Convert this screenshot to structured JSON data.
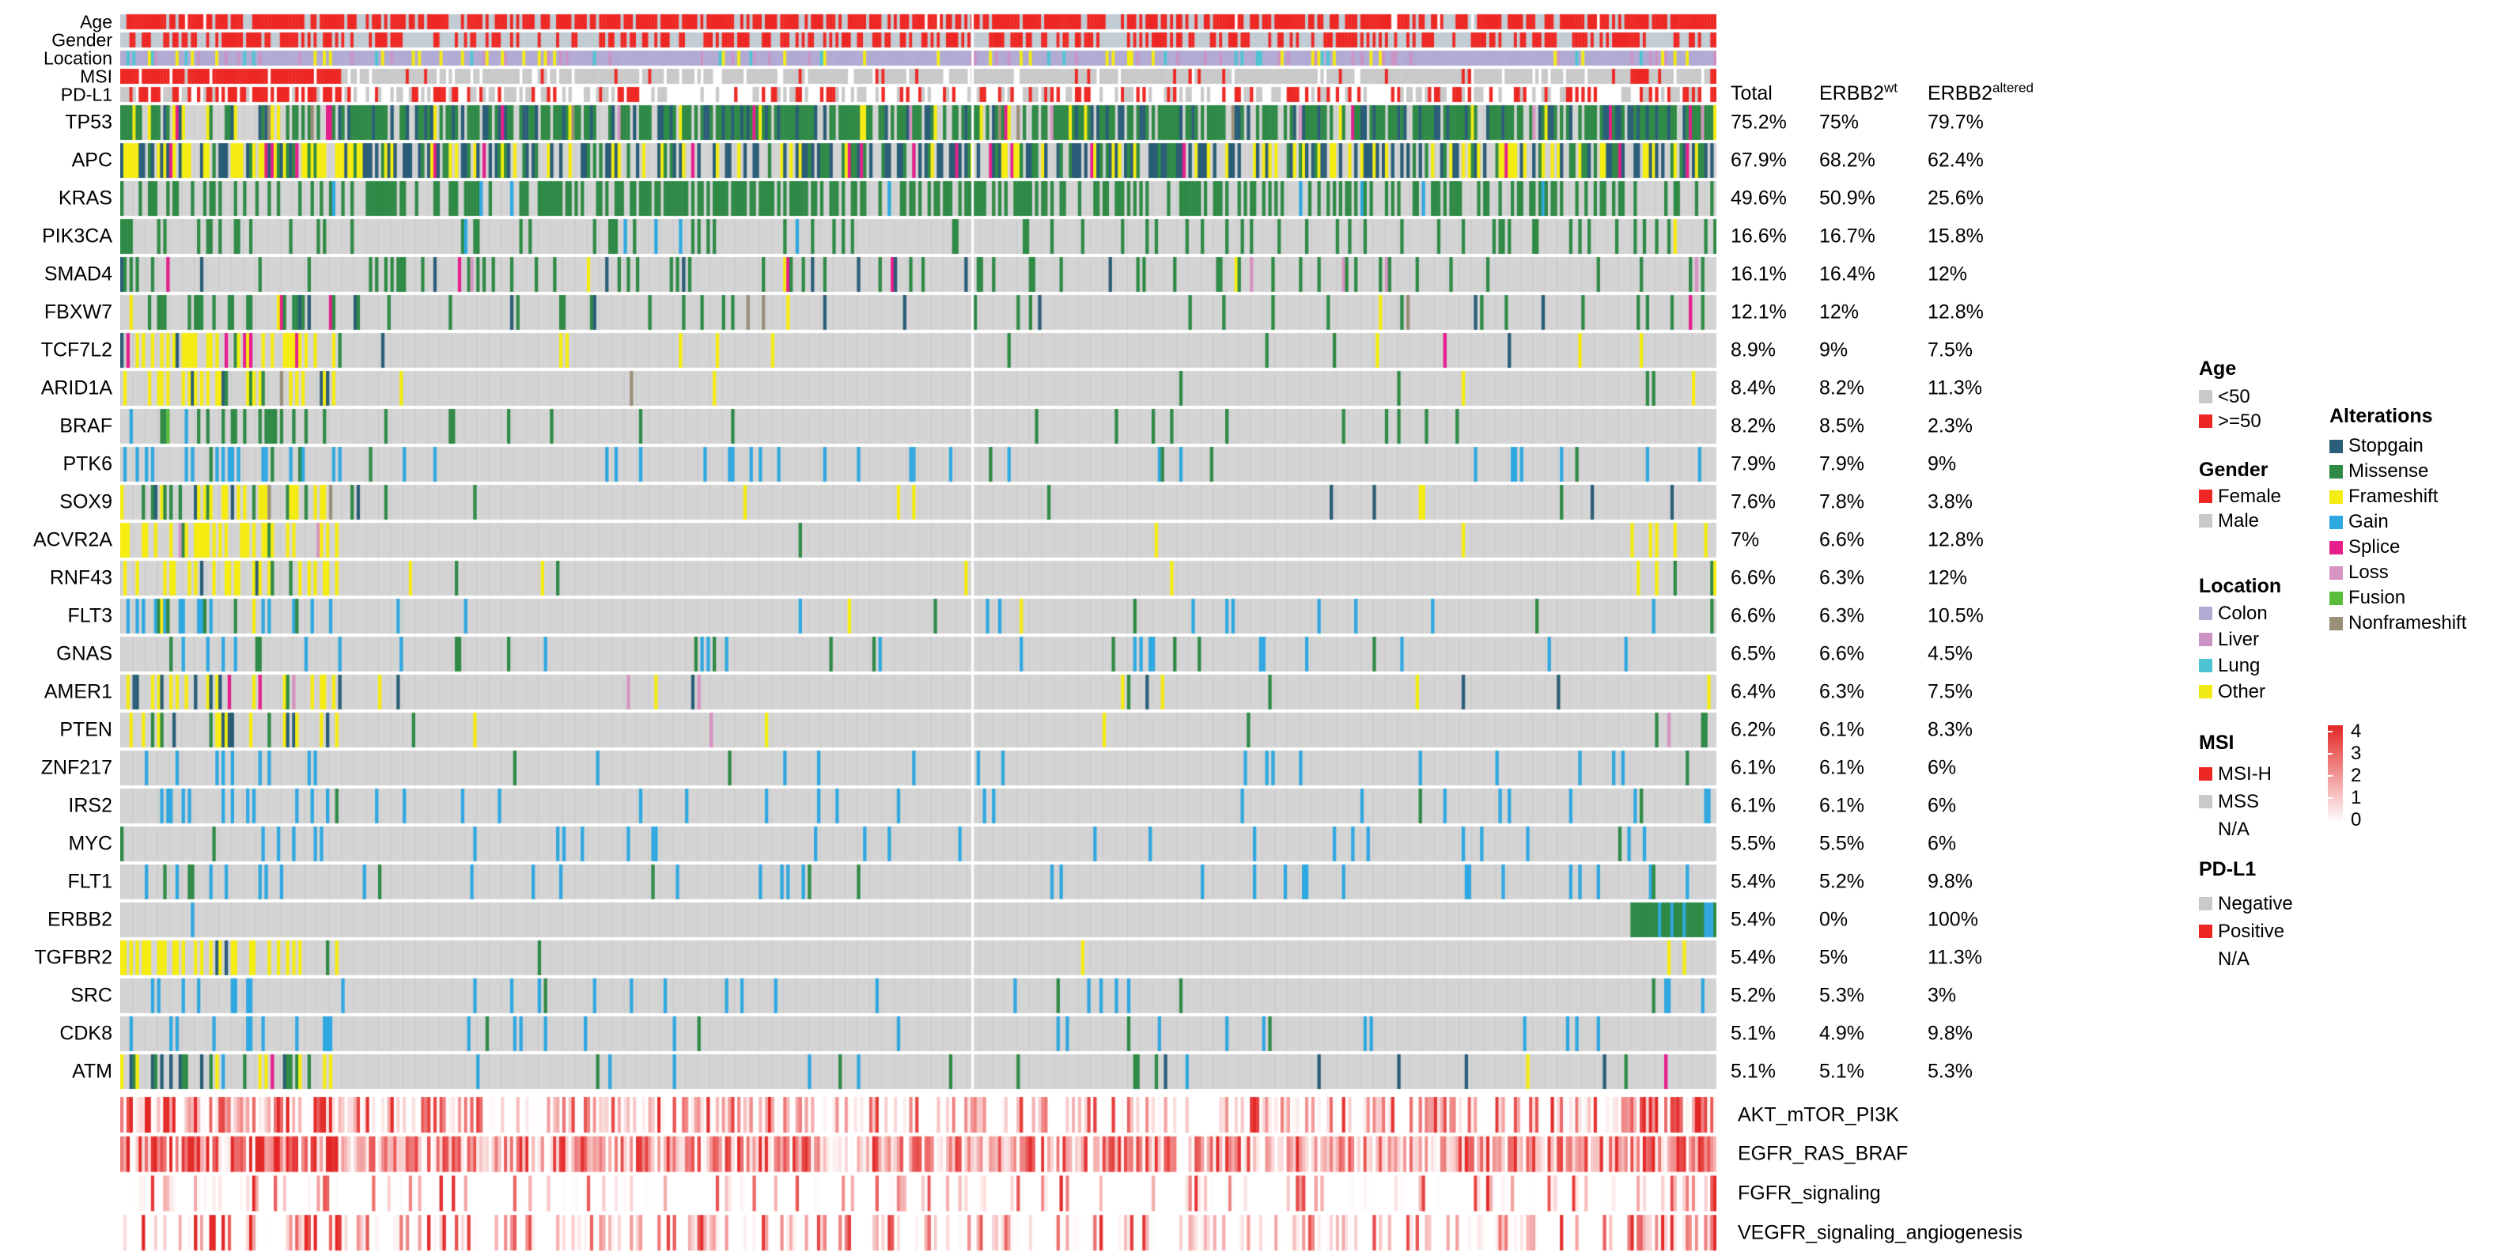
{
  "columns": {
    "total": "Total",
    "base": "ERBB2",
    "wt": "wt",
    "altered": "altered"
  },
  "colors": {
    "re": "#ed2824",
    "gy": "#c9c9c9",
    "gb": "#c1ccd4",
    "wh": "#ffffff",
    "la": "#b1aad3",
    "pl": "#ca93c4",
    "cy": "#4cc4d4",
    "ye": "#f2ea15",
    "st": "#2a5d77",
    "mi": "#2f8a46",
    "fr": "#f5ec11",
    "ga": "#2fa8e1",
    "sp": "#e61e8c",
    "lo": "#d793c1",
    "fu": "#59bd3b",
    "nf": "#9b8f7a",
    "bg": "#d4d4d4",
    "scale": "#e32726"
  },
  "chart_data": {
    "type": "oncoprint",
    "n_columns": 520,
    "groups": {
      "msi_h_fraction": 0.138,
      "erbb2_altered_fraction": 0.053,
      "separator_at": 0.534
    },
    "clinical_rows": [
      {
        "label": "Age",
        "mix": {
          "msi": {
            "re": 0.82,
            "gb": 0.16,
            "wh": 0.02
          },
          "mss": {
            "re": 0.72,
            "gb": 0.26,
            "wh": 0.02
          },
          "alt": {
            "re": 0.85,
            "gb": 0.15
          }
        }
      },
      {
        "label": "Gender",
        "mix": {
          "msi": {
            "re": 0.62,
            "gb": 0.38
          },
          "mss": {
            "re": 0.5,
            "gb": 0.5
          },
          "alt": {
            "re": 0.55,
            "gb": 0.45
          }
        }
      },
      {
        "label": "Location",
        "mix": {
          "msi": {
            "la": 0.78,
            "pl": 0.08,
            "cy": 0.05,
            "ye": 0.09
          },
          "mss": {
            "la": 0.78,
            "pl": 0.08,
            "cy": 0.05,
            "ye": 0.09
          },
          "alt": {
            "la": 0.74,
            "pl": 0.1,
            "cy": 0.05,
            "ye": 0.11
          }
        }
      },
      {
        "label": "MSI",
        "lead": 0.2,
        "mix": {
          "msi": {
            "re": 0.93,
            "wh": 0.05,
            "gy": 0.02
          },
          "mss": {
            "gy": 0.85,
            "re": 0.04,
            "wh": 0.11
          },
          "alt": {
            "re": 0.25,
            "gy": 0.65,
            "wh": 0.1
          }
        }
      },
      {
        "label": "PD-L1",
        "mix": {
          "msi": {
            "re": 0.45,
            "gy": 0.25,
            "wh": 0.3
          },
          "mss": {
            "re": 0.2,
            "gy": 0.32,
            "wh": 0.48
          },
          "alt": {
            "re": 0.38,
            "gy": 0.28,
            "wh": 0.34
          }
        }
      }
    ],
    "genes": [
      {
        "name": "TP53",
        "total": "75.2%",
        "wt": "75%",
        "altered": "79.7%",
        "pattern": {
          "fm": 0.62,
          "fs": 0.78,
          "fa": 0.8,
          "pal": {
            "mi": 0.66,
            "st": 0.22,
            "fr": 0.05,
            "sp": 0.03,
            "lo": 0.02,
            "nf": 0.02
          },
          "mpal": {
            "mi": 0.5,
            "st": 0.3,
            "fr": 0.14,
            "sp": 0.03,
            "nf": 0.03
          }
        }
      },
      {
        "name": "APC",
        "total": "67.9%",
        "wt": "68.2%",
        "altered": "62.4%",
        "pattern": {
          "fm": 0.78,
          "fs": 0.68,
          "fa": 0.62,
          "pal": {
            "st": 0.45,
            "fr": 0.27,
            "mi": 0.23,
            "sp": 0.05
          },
          "mpal": {
            "st": 0.36,
            "fr": 0.44,
            "mi": 0.15,
            "sp": 0.05
          }
        }
      },
      {
        "name": "KRAS",
        "total": "49.6%",
        "wt": "50.9%",
        "altered": "25.6%",
        "pattern": {
          "fm": 0.42,
          "fs": 0.53,
          "fa": 0.26,
          "pal": {
            "mi": 0.96,
            "ga": 0.04
          }
        }
      },
      {
        "name": "PIK3CA",
        "total": "16.6%",
        "wt": "16.7%",
        "altered": "15.8%",
        "pattern": {
          "fm": 0.34,
          "fs": 0.15,
          "fa": 0.16,
          "pal": {
            "mi": 0.94,
            "fr": 0.04,
            "ga": 0.02
          }
        }
      },
      {
        "name": "SMAD4",
        "total": "16.1%",
        "wt": "16.4%",
        "altered": "12%",
        "pattern": {
          "fm": 0.12,
          "fs": 0.17,
          "fa": 0.12,
          "pal": {
            "mi": 0.72,
            "st": 0.1,
            "sp": 0.08,
            "lo": 0.06,
            "fr": 0.04
          }
        }
      },
      {
        "name": "FBXW7",
        "total": "12.1%",
        "wt": "12%",
        "altered": "12.8%",
        "pattern": {
          "fm": 0.32,
          "fs": 0.1,
          "fa": 0.13,
          "pal": {
            "mi": 0.66,
            "st": 0.16,
            "sp": 0.08,
            "fr": 0.06,
            "nf": 0.04
          }
        }
      },
      {
        "name": "TCF7L2",
        "total": "8.9%",
        "wt": "9%",
        "altered": "7.5%",
        "pattern": {
          "fm": 0.5,
          "fs": 0.033,
          "fa": 0.075,
          "pal": {
            "fr": 0.45,
            "mi": 0.33,
            "st": 0.12,
            "sp": 0.1
          },
          "mpal": {
            "fr": 0.78,
            "mi": 0.1,
            "st": 0.06,
            "sp": 0.06
          }
        }
      },
      {
        "name": "ARID1A",
        "total": "8.4%",
        "wt": "8.2%",
        "altered": "11.3%",
        "pattern": {
          "fm": 0.48,
          "fs": 0.028,
          "fa": 0.113,
          "pal": {
            "fr": 0.4,
            "st": 0.25,
            "mi": 0.25,
            "nf": 0.1
          },
          "mpal": {
            "fr": 0.6,
            "st": 0.18,
            "mi": 0.12,
            "nf": 0.1
          }
        }
      },
      {
        "name": "BRAF",
        "total": "8.2%",
        "wt": "8.5%",
        "altered": "2.3%",
        "pattern": {
          "fm": 0.32,
          "fs": 0.055,
          "fa": 0.023,
          "pal": {
            "mi": 0.88,
            "ga": 0.06,
            "fu": 0.06
          }
        }
      },
      {
        "name": "PTK6",
        "total": "7.9%",
        "wt": "7.9%",
        "altered": "9%",
        "pattern": {
          "fm": 0.24,
          "fs": 0.062,
          "fa": 0.09,
          "pal": {
            "ga": 0.88,
            "mi": 0.12
          }
        }
      },
      {
        "name": "SOX9",
        "total": "7.6%",
        "wt": "7.8%",
        "altered": "3.8%",
        "pattern": {
          "fm": 0.36,
          "fs": 0.038,
          "fa": 0.038,
          "pal": {
            "fr": 0.5,
            "mi": 0.3,
            "st": 0.2
          },
          "mpal": {
            "fr": 0.62,
            "st": 0.16,
            "mi": 0.14,
            "nf": 0.08
          }
        }
      },
      {
        "name": "ACVR2A",
        "total": "7%",
        "wt": "6.6%",
        "altered": "12.8%",
        "pattern": {
          "fm": 0.5,
          "fs": 0.008,
          "fa": 0.128,
          "pal": {
            "fr": 0.7,
            "mi": 0.3
          },
          "mpal": {
            "fr": 0.9,
            "mi": 0.06,
            "lo": 0.04
          }
        }
      },
      {
        "name": "RNF43",
        "total": "6.6%",
        "wt": "6.3%",
        "altered": "12%",
        "pattern": {
          "fm": 0.42,
          "fs": 0.013,
          "fa": 0.12,
          "pal": {
            "fr": 0.6,
            "mi": 0.4
          },
          "mpal": {
            "fr": 0.78,
            "mi": 0.1,
            "st": 0.06,
            "sp": 0.06
          }
        }
      },
      {
        "name": "FLT3",
        "total": "6.6%",
        "wt": "6.3%",
        "altered": "10.5%",
        "pattern": {
          "fm": 0.2,
          "fs": 0.046,
          "fa": 0.105,
          "pal": {
            "ga": 0.68,
            "mi": 0.27,
            "fr": 0.05
          }
        }
      },
      {
        "name": "GNAS",
        "total": "6.5%",
        "wt": "6.6%",
        "altered": "4.5%",
        "pattern": {
          "fm": 0.14,
          "fs": 0.058,
          "fa": 0.045,
          "pal": {
            "ga": 0.52,
            "mi": 0.44,
            "fr": 0.04
          }
        }
      },
      {
        "name": "AMER1",
        "total": "6.4%",
        "wt": "6.3%",
        "altered": "7.5%",
        "pattern": {
          "fm": 0.3,
          "fs": 0.024,
          "fa": 0.075,
          "pal": {
            "st": 0.35,
            "mi": 0.3,
            "fr": 0.25,
            "lo": 0.1
          },
          "mpal": {
            "fr": 0.45,
            "st": 0.25,
            "mi": 0.15,
            "lo": 0.1,
            "sp": 0.05
          }
        }
      },
      {
        "name": "PTEN",
        "total": "6.2%",
        "wt": "6.1%",
        "altered": "8.3%",
        "pattern": {
          "fm": 0.36,
          "fs": 0.012,
          "fa": 0.083,
          "pal": {
            "mi": 0.4,
            "st": 0.3,
            "fr": 0.2,
            "lo": 0.1
          },
          "mpal": {
            "fr": 0.35,
            "mi": 0.3,
            "st": 0.25,
            "lo": 0.05,
            "sp": 0.05
          }
        }
      },
      {
        "name": "ZNF217",
        "total": "6.1%",
        "wt": "6.1%",
        "altered": "6%",
        "pattern": {
          "fm": 0.1,
          "fs": 0.057,
          "fa": 0.06,
          "pal": {
            "ga": 0.85,
            "mi": 0.15
          }
        }
      },
      {
        "name": "IRS2",
        "total": "6.1%",
        "wt": "6.1%",
        "altered": "6%",
        "pattern": {
          "fm": 0.14,
          "fs": 0.052,
          "fa": 0.06,
          "pal": {
            "ga": 0.86,
            "mi": 0.14
          }
        }
      },
      {
        "name": "MYC",
        "total": "5.5%",
        "wt": "5.5%",
        "altered": "6%",
        "pattern": {
          "fm": 0.06,
          "fs": 0.055,
          "fa": 0.06,
          "pal": {
            "ga": 0.92,
            "mi": 0.08
          }
        }
      },
      {
        "name": "FLT1",
        "total": "5.4%",
        "wt": "5.2%",
        "altered": "9.8%",
        "pattern": {
          "fm": 0.08,
          "fs": 0.05,
          "fa": 0.098,
          "pal": {
            "ga": 0.86,
            "mi": 0.14
          }
        }
      },
      {
        "name": "ERBB2",
        "total": "5.4%",
        "wt": "0%",
        "altered": "100%",
        "pattern": {
          "fm": 0.01,
          "fs": 0.0,
          "fa": 1.0,
          "special": true,
          "pal": {
            "ga": 0.65,
            "mi": 0.35
          }
        }
      },
      {
        "name": "TGFBR2",
        "total": "5.4%",
        "wt": "5%",
        "altered": "11.3%",
        "pattern": {
          "fm": 0.44,
          "fs": 0.008,
          "fa": 0.113,
          "pal": {
            "fr": 0.7,
            "mi": 0.3
          },
          "mpal": {
            "fr": 0.88,
            "mi": 0.08,
            "st": 0.04
          }
        }
      },
      {
        "name": "SRC",
        "total": "5.2%",
        "wt": "5.3%",
        "altered": "3%",
        "pattern": {
          "fm": 0.1,
          "fs": 0.048,
          "fa": 0.03,
          "pal": {
            "ga": 0.85,
            "mi": 0.15
          }
        }
      },
      {
        "name": "CDK8",
        "total": "5.1%",
        "wt": "4.9%",
        "altered": "9.8%",
        "pattern": {
          "fm": 0.1,
          "fs": 0.044,
          "fa": 0.098,
          "pal": {
            "ga": 0.85,
            "mi": 0.15
          }
        }
      },
      {
        "name": "ATM",
        "total": "5.1%",
        "wt": "5.1%",
        "altered": "5.3%",
        "pattern": {
          "fm": 0.36,
          "fs": 0.042,
          "fa": 0.053,
          "pal": {
            "st": 0.35,
            "mi": 0.35,
            "ga": 0.15,
            "fr": 0.1,
            "sp": 0.05
          },
          "mpal": {
            "st": 0.28,
            "fr": 0.28,
            "mi": 0.24,
            "ga": 0.12,
            "sp": 0.08
          }
        }
      }
    ],
    "pathways": [
      {
        "label": "AKT_mTOR_PI3K",
        "p": {
          "msi": 0.9,
          "mss": 0.52,
          "alt": 0.85
        },
        "skew": 1.8
      },
      {
        "label": "EGFR_RAS_BRAF",
        "p": {
          "msi": 0.96,
          "mss": 0.86,
          "alt": 0.96
        },
        "skew": 1.15
      },
      {
        "label": "FGFR_signaling",
        "p": {
          "msi": 0.42,
          "mss": 0.27,
          "alt": 0.55
        },
        "skew": 2.2
      },
      {
        "label": "VEGFR_signaling_angiogenesis",
        "p": {
          "msi": 0.36,
          "mss": 0.4,
          "alt": 0.75
        },
        "skew": 2.0,
        "u_bias": 0.12
      }
    ],
    "value_scale": {
      "min": 0,
      "max": 4
    }
  },
  "legend": {
    "age": {
      "title": "Age",
      "items": [
        {
          "label": "<50",
          "color": "#c9c9c9"
        },
        {
          "label": ">=50",
          "color": "#ed2824"
        }
      ]
    },
    "gender": {
      "title": "Gender",
      "items": [
        {
          "label": "Female",
          "color": "#ed2824"
        },
        {
          "label": "Male",
          "color": "#c9c9c9"
        }
      ]
    },
    "location": {
      "title": "Location",
      "items": [
        {
          "label": "Colon",
          "color": "#b1aad3"
        },
        {
          "label": "Liver",
          "color": "#ca93c4"
        },
        {
          "label": "Lung",
          "color": "#4cc4d4"
        },
        {
          "label": "Other",
          "color": "#f2ea15"
        }
      ]
    },
    "msi": {
      "title": "MSI",
      "items": [
        {
          "label": "MSI-H",
          "color": "#ed2824"
        },
        {
          "label": "MSS",
          "color": "#c9c9c9"
        },
        {
          "label": "N/A",
          "color": null
        }
      ]
    },
    "pdl1": {
      "title": "PD-L1",
      "items": [
        {
          "label": "Negative",
          "color": "#c9c9c9"
        },
        {
          "label": "Positive",
          "color": "#ed2824"
        },
        {
          "label": "N/A",
          "color": null
        }
      ]
    },
    "alterations": {
      "title": "Alterations",
      "items": [
        {
          "label": "Stopgain",
          "color": "#2a5d77"
        },
        {
          "label": "Missense",
          "color": "#2f8a46"
        },
        {
          "label": "Frameshift",
          "color": "#f5ec11"
        },
        {
          "label": "Gain",
          "color": "#2fa8e1"
        },
        {
          "label": "Splice",
          "color": "#e61e8c"
        },
        {
          "label": "Loss",
          "color": "#d793c1"
        },
        {
          "label": "Fusion",
          "color": "#59bd3b"
        },
        {
          "label": "Nonframeshift",
          "color": "#9b8f7a"
        }
      ]
    },
    "scale": {
      "ticks": [
        "4",
        "3",
        "2",
        "1",
        "0"
      ],
      "top": "#e32726",
      "bottom": "#ffffff"
    }
  }
}
